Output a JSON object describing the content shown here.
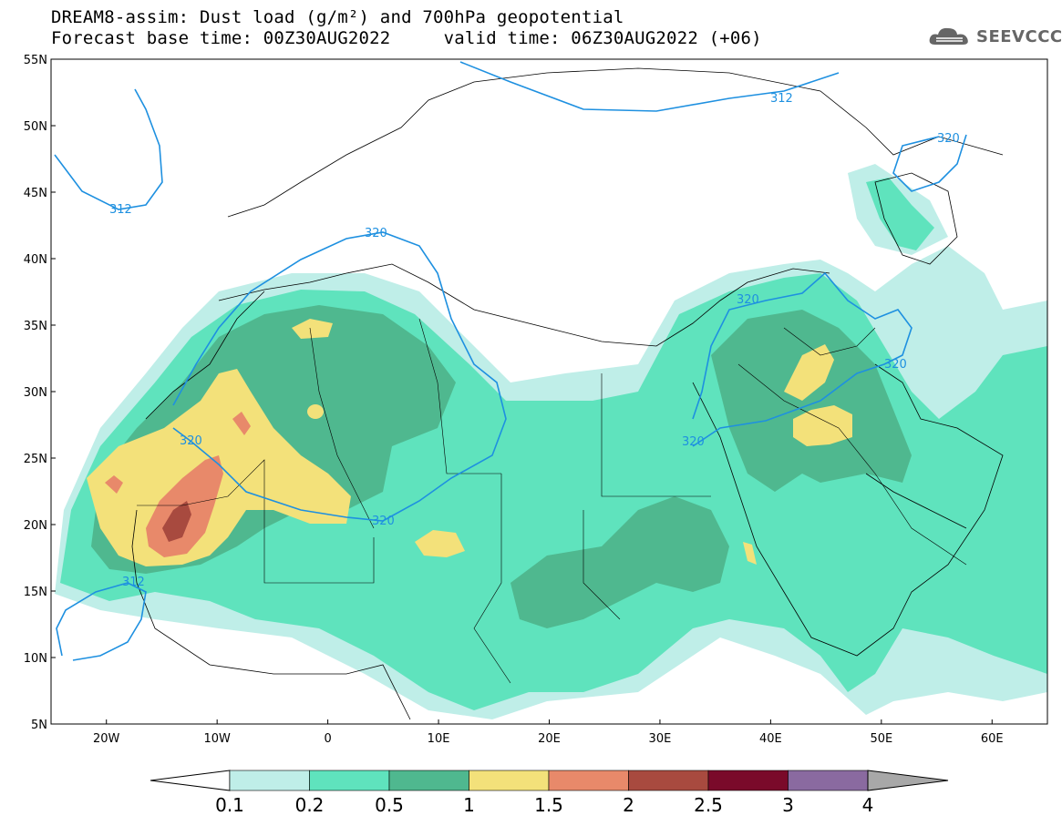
{
  "header": {
    "title_line1": "DREAM8-assim: Dust load (g/m²) and 700hPa geopotential",
    "title_line2": "Forecast base time: 00Z30AUG2022     valid time: 06Z30AUG2022 (+06)",
    "logo_text": "SEEVCCC",
    "logo_icon": "cloud-logo-icon"
  },
  "axes": {
    "lat_labels": [
      "55N",
      "50N",
      "45N",
      "40N",
      "35N",
      "30N",
      "25N",
      "20N",
      "15N",
      "10N",
      "5N"
    ],
    "lon_labels": [
      "20W",
      "10W",
      "0",
      "10E",
      "20E",
      "30E",
      "40E",
      "50E",
      "60E"
    ],
    "lat_range": [
      5,
      55
    ],
    "lon_range": [
      -25,
      65
    ]
  },
  "contours": {
    "labels": [
      "312",
      "320",
      "320",
      "320",
      "320",
      "320",
      "320",
      "312"
    ],
    "line_color": "#1e90e0"
  },
  "colorbar": {
    "ticks": [
      "0.1",
      "0.2",
      "0.5",
      "1",
      "1.5",
      "2",
      "2.5",
      "3",
      "4"
    ],
    "colors": [
      "#ffffff",
      "#bfeee8",
      "#5fe3bd",
      "#4fb88f",
      "#f3e17a",
      "#e8896a",
      "#a84a3f",
      "#7a0a2a",
      "#8a6aa0",
      "#a8a8a8"
    ]
  }
}
